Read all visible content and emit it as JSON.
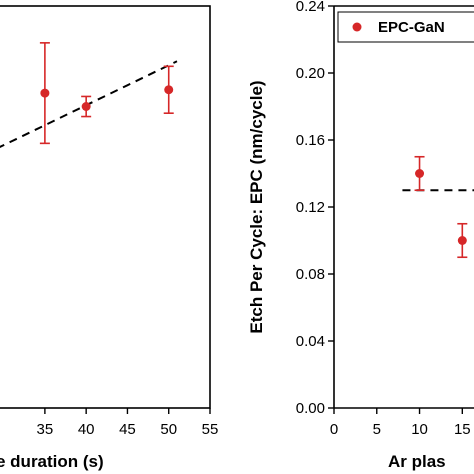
{
  "chart_data": [
    {
      "type": "scatter",
      "panel": "left",
      "xlabel": "e duration (s)",
      "ylabel": "",
      "xlim": [
        29.2,
        55
      ],
      "ylim": [
        0,
        0.24
      ],
      "x_ticks": [
        "35",
        "40",
        "45",
        "50",
        "55"
      ],
      "y_ticks": [],
      "grid": false,
      "series": [
        {
          "color": "#d62728",
          "points": [
            {
              "x": 35,
              "y": 0.188,
              "err": 0.03
            },
            {
              "x": 40,
              "y": 0.18,
              "err": 0.006
            },
            {
              "x": 50,
              "y": 0.19,
              "err": 0.014
            }
          ]
        }
      ],
      "trend_line": {
        "style": "dashed",
        "x": [
          29.2,
          51
        ],
        "y": [
          0.155,
          0.207
        ]
      }
    },
    {
      "type": "scatter",
      "panel": "right",
      "xlabel": "Ar plas",
      "ylabel": "Etch Per Cycle: EPC (nm/cycle)",
      "xlim": [
        0,
        16.6
      ],
      "ylim": [
        0,
        0.24
      ],
      "x_ticks": [
        "0",
        "5",
        "10",
        "15"
      ],
      "y_ticks": [
        "0.00",
        "0.04",
        "0.08",
        "0.12",
        "0.16",
        "0.20",
        "0.24"
      ],
      "grid": false,
      "legend": {
        "placement": "top-right",
        "entries": [
          "EPC-GaN"
        ]
      },
      "series": [
        {
          "name": "EPC-GaN",
          "color": "#d62728",
          "points": [
            {
              "x": 10,
              "y": 0.14,
              "err": 0.01
            },
            {
              "x": 15,
              "y": 0.1,
              "err": 0.01
            }
          ]
        }
      ],
      "trend_line": {
        "style": "dashed",
        "x": [
          8,
          16.6
        ],
        "y": [
          0.13,
          0.13
        ]
      }
    }
  ]
}
